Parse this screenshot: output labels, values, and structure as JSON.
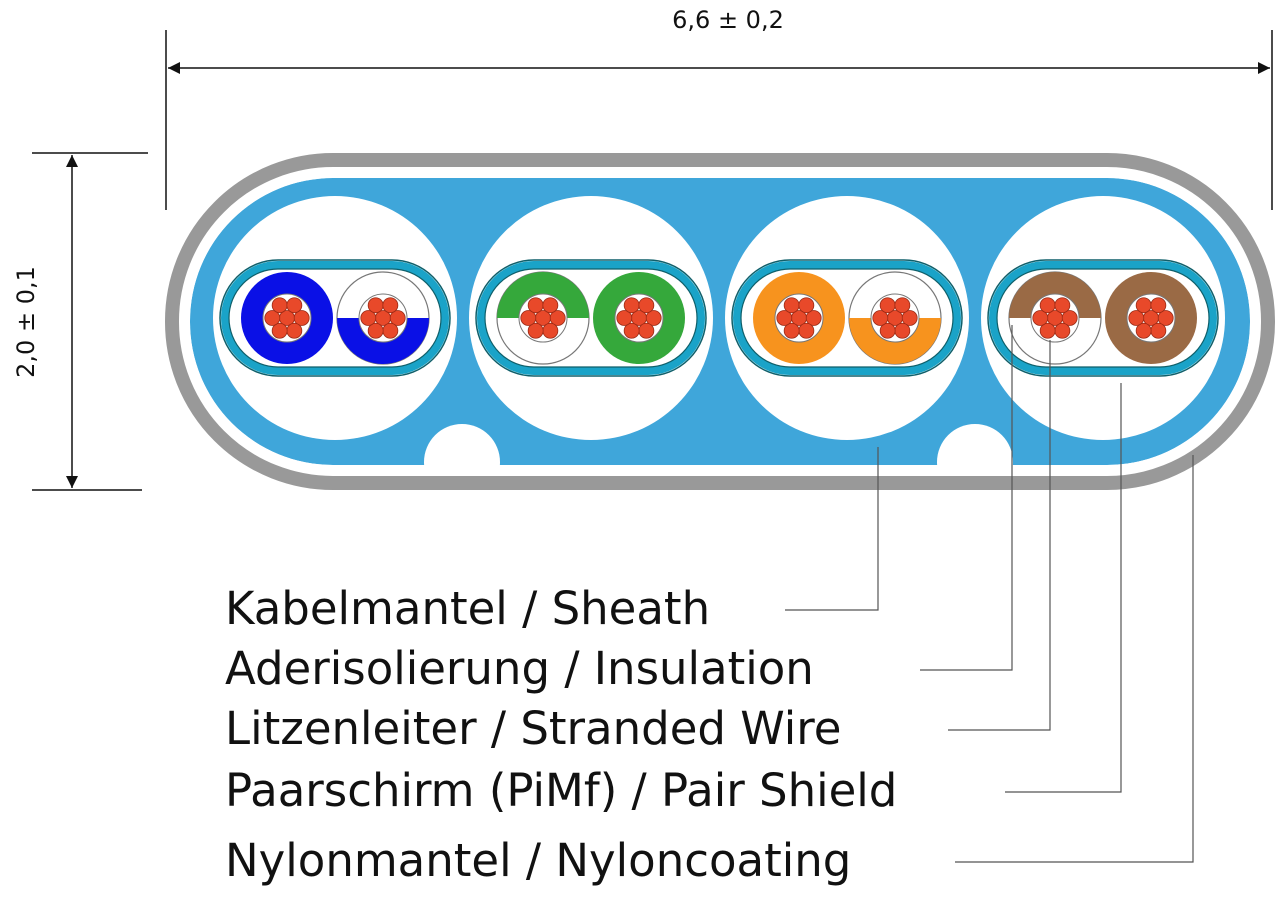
{
  "dimensions": {
    "width_label": "6,6 ± 0,2",
    "height_label": "2,0 ± 0,1"
  },
  "colors": {
    "sheath": "#999999",
    "nylon": "#3fa6da",
    "shield": "#1aa3c8",
    "conductor": "#e8492a"
  },
  "pairs": [
    {
      "color": "#0a10e6",
      "wires": [
        "solid",
        "white-bottom"
      ]
    },
    {
      "color": "#35a83b",
      "wires": [
        "white-top",
        "solid"
      ]
    },
    {
      "color": "#f7931e",
      "wires": [
        "solid",
        "white-bottom"
      ]
    },
    {
      "color": "#9a6a45",
      "wires": [
        "white-top",
        "solid"
      ]
    }
  ],
  "labels": [
    "Kabelmantel / Sheath",
    "Aderisolierung / Insulation",
    "Litzenleiter / Stranded Wire",
    "Paarschirm (PiMf) / Pair Shield",
    "Nylonmantel / Nyloncoating"
  ]
}
